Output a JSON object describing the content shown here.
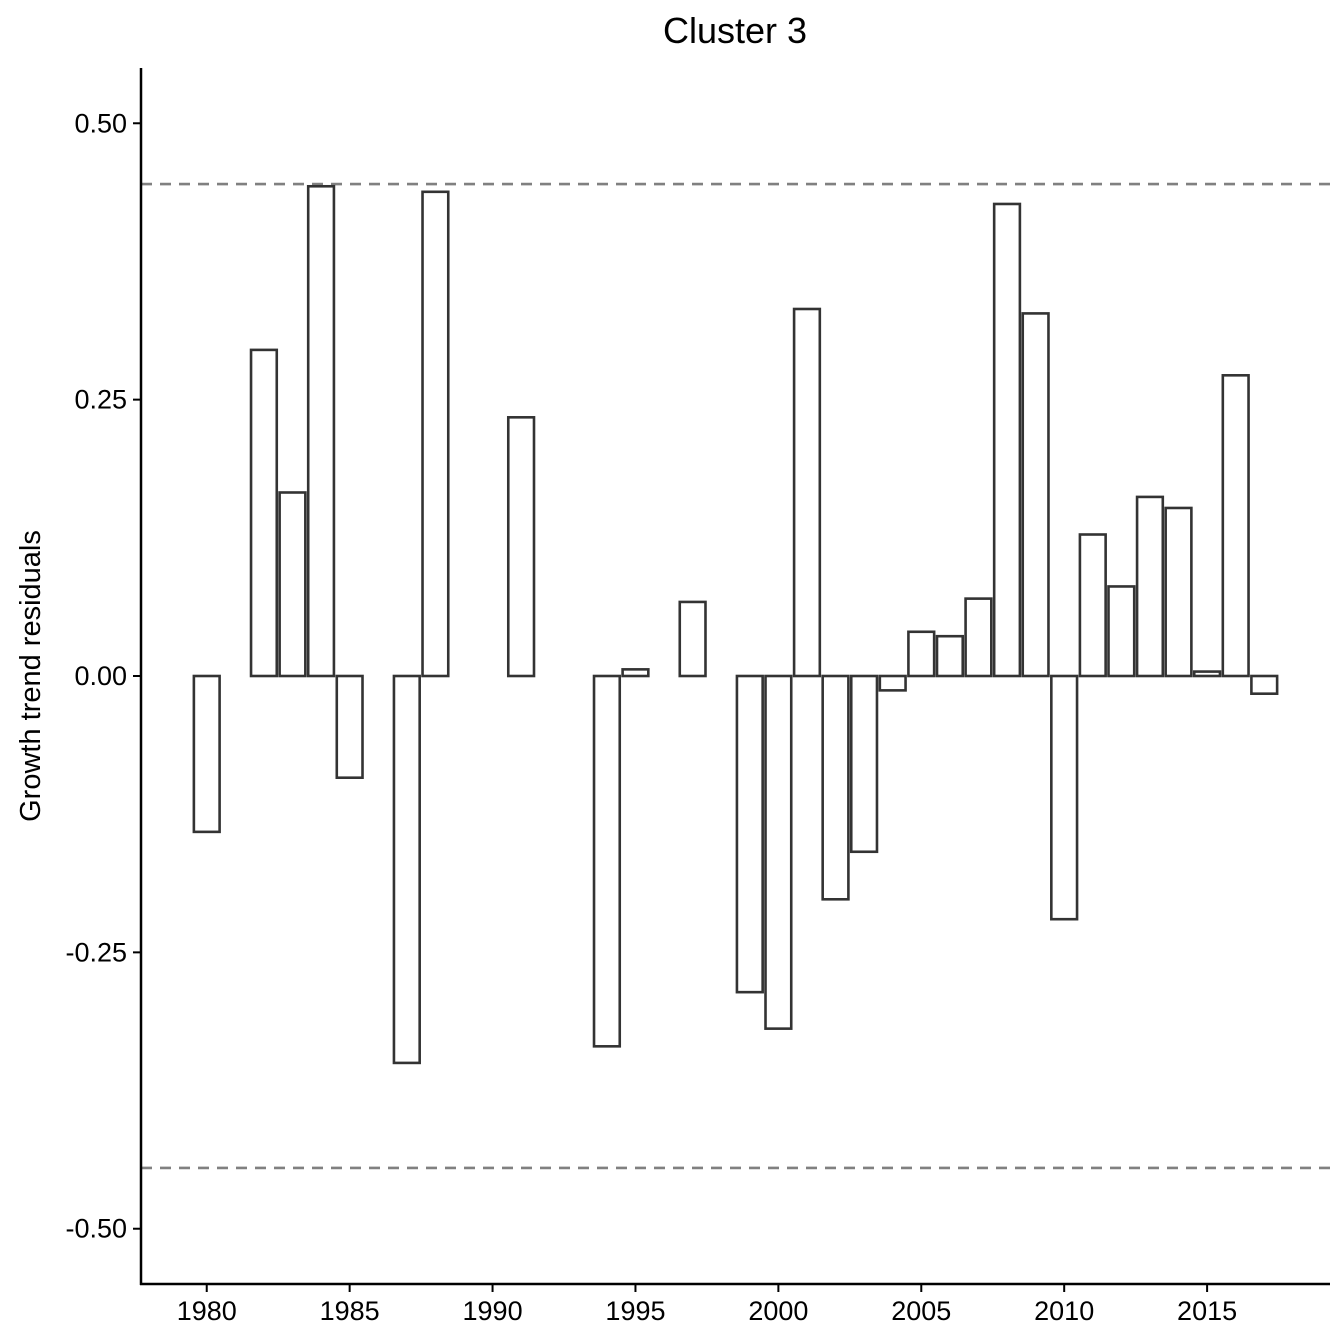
{
  "chart_data": {
    "type": "bar",
    "title": "Cluster 3",
    "xlabel": "",
    "ylabel": "Growth trend residuals",
    "xlim": [
      1977.7,
      2019.3
    ],
    "ylim": [
      -0.55,
      0.55
    ],
    "x_ticks": [
      1980,
      1985,
      1990,
      1995,
      2000,
      2005,
      2010,
      2015
    ],
    "y_ticks": [
      0.5,
      0.25,
      0.0,
      -0.25,
      -0.5
    ],
    "y_tick_labels": [
      "0.50",
      "0.25",
      "0.00",
      "-0.25",
      "-0.50"
    ],
    "reference_lines": [
      0.445,
      -0.445
    ],
    "grid": false,
    "bar_fill": "#ffffff",
    "bar_stroke": "#333333",
    "ref_line_color": "#808080",
    "data": [
      {
        "x": 1980,
        "y": -0.141
      },
      {
        "x": 1982,
        "y": 0.295
      },
      {
        "x": 1983,
        "y": 0.166
      },
      {
        "x": 1984,
        "y": 0.443
      },
      {
        "x": 1985,
        "y": -0.092
      },
      {
        "x": 1987,
        "y": -0.35
      },
      {
        "x": 1988,
        "y": 0.438
      },
      {
        "x": 1991,
        "y": 0.234
      },
      {
        "x": 1994,
        "y": -0.335
      },
      {
        "x": 1995,
        "y": 0.006
      },
      {
        "x": 1997,
        "y": 0.067
      },
      {
        "x": 1999,
        "y": -0.286
      },
      {
        "x": 2000,
        "y": -0.319
      },
      {
        "x": 2001,
        "y": 0.332
      },
      {
        "x": 2002,
        "y": -0.202
      },
      {
        "x": 2003,
        "y": -0.159
      },
      {
        "x": 2004,
        "y": -0.013
      },
      {
        "x": 2005,
        "y": 0.04
      },
      {
        "x": 2006,
        "y": 0.036
      },
      {
        "x": 2007,
        "y": 0.07
      },
      {
        "x": 2008,
        "y": 0.427
      },
      {
        "x": 2009,
        "y": 0.328
      },
      {
        "x": 2010,
        "y": -0.22
      },
      {
        "x": 2011,
        "y": 0.128
      },
      {
        "x": 2012,
        "y": 0.081
      },
      {
        "x": 2013,
        "y": 0.162
      },
      {
        "x": 2014,
        "y": 0.152
      },
      {
        "x": 2015,
        "y": 0.004
      },
      {
        "x": 2016,
        "y": 0.272
      },
      {
        "x": 2017,
        "y": -0.016
      }
    ]
  }
}
